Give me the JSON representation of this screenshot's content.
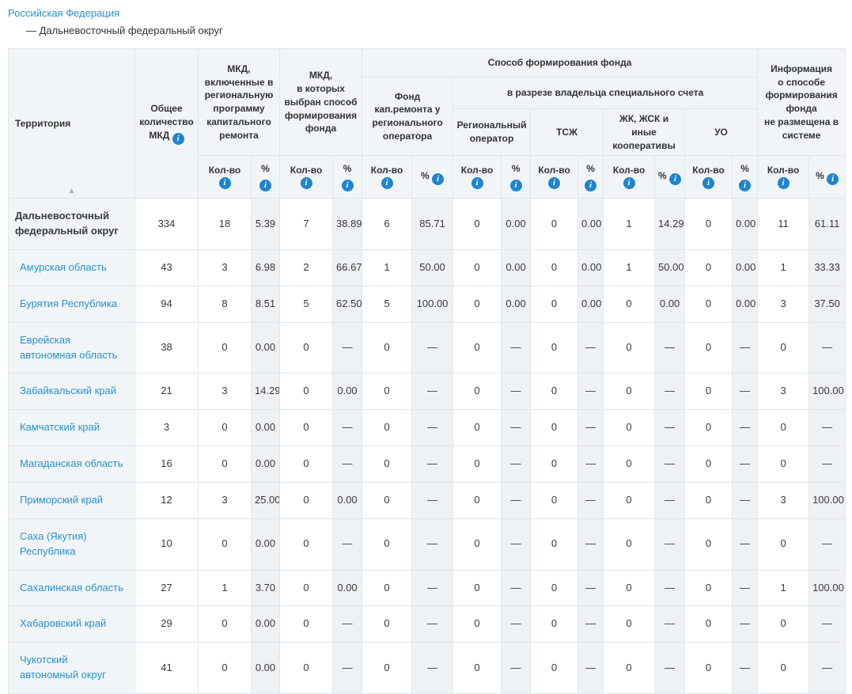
{
  "breadcrumb": {
    "root": "Российская Федерация",
    "current": "— Дальневосточный федеральный округ"
  },
  "colors": {
    "link": "#2692d0",
    "info_icon": "#1d85d0",
    "header_bg": "#f2f5f8",
    "pct_col_bg": "#eef2f5",
    "border": "#e2e7eb"
  },
  "icons": {
    "info": "i",
    "sort_asc": "▲"
  },
  "table": {
    "columns": {
      "territory": "Территория",
      "total": "Общее количество МКД",
      "included_program": "МКД,\nвключенные в региональную программу капитального ремонта",
      "method_chosen": "МКД,\nв которых выбран способ формирования фонда",
      "fund_method": "Способ формирования фонда",
      "fund_regional_operator": "Фонд\nкап.ремонта у регионального оператора",
      "special_account": "в разрезе владельца специального счета",
      "special_owners": [
        "Региональный оператор",
        "ТСЖ",
        "ЖК, ЖСК и иные кооперативы",
        "УО"
      ],
      "info_not_posted": "Информация\nо способе формирования фонда\nне размещена в системе",
      "qty": "Кол-во",
      "pct": "%"
    },
    "rows": [
      {
        "territory": "Дальневосточный федеральный округ",
        "is_link": false,
        "bold": true,
        "values": [
          "334",
          "18",
          "5.39",
          "7",
          "38.89",
          "6",
          "85.71",
          "0",
          "0.00",
          "0",
          "0.00",
          "1",
          "14.29",
          "0",
          "0.00",
          "11",
          "61.11"
        ]
      },
      {
        "territory": "Амурская область",
        "is_link": true,
        "bold": false,
        "values": [
          "43",
          "3",
          "6.98",
          "2",
          "66.67",
          "1",
          "50.00",
          "0",
          "0.00",
          "0",
          "0.00",
          "1",
          "50.00",
          "0",
          "0.00",
          "1",
          "33.33"
        ]
      },
      {
        "territory": "Бурятия Республика",
        "is_link": true,
        "bold": false,
        "values": [
          "94",
          "8",
          "8.51",
          "5",
          "62.50",
          "5",
          "100.00",
          "0",
          "0.00",
          "0",
          "0.00",
          "0",
          "0.00",
          "0",
          "0.00",
          "3",
          "37.50"
        ]
      },
      {
        "territory": "Еврейская автономная область",
        "is_link": true,
        "bold": false,
        "values": [
          "38",
          "0",
          "0.00",
          "0",
          "—",
          "0",
          "—",
          "0",
          "—",
          "0",
          "—",
          "0",
          "—",
          "0",
          "—",
          "0",
          "—"
        ]
      },
      {
        "territory": "Забайкальский край",
        "is_link": true,
        "bold": false,
        "values": [
          "21",
          "3",
          "14.29",
          "0",
          "0.00",
          "0",
          "—",
          "0",
          "—",
          "0",
          "—",
          "0",
          "—",
          "0",
          "—",
          "3",
          "100.00"
        ]
      },
      {
        "territory": "Камчатский край",
        "is_link": true,
        "bold": false,
        "values": [
          "3",
          "0",
          "0.00",
          "0",
          "—",
          "0",
          "—",
          "0",
          "—",
          "0",
          "—",
          "0",
          "—",
          "0",
          "—",
          "0",
          "—"
        ]
      },
      {
        "territory": "Магаданская область",
        "is_link": true,
        "bold": false,
        "values": [
          "16",
          "0",
          "0.00",
          "0",
          "—",
          "0",
          "—",
          "0",
          "—",
          "0",
          "—",
          "0",
          "—",
          "0",
          "—",
          "0",
          "—"
        ]
      },
      {
        "territory": "Приморский край",
        "is_link": true,
        "bold": false,
        "values": [
          "12",
          "3",
          "25.00",
          "0",
          "0.00",
          "0",
          "—",
          "0",
          "—",
          "0",
          "—",
          "0",
          "—",
          "0",
          "—",
          "3",
          "100.00"
        ]
      },
      {
        "territory": "Саха (Якутия) Республика",
        "is_link": true,
        "bold": false,
        "values": [
          "10",
          "0",
          "0.00",
          "0",
          "—",
          "0",
          "—",
          "0",
          "—",
          "0",
          "—",
          "0",
          "—",
          "0",
          "—",
          "0",
          "—"
        ]
      },
      {
        "territory": "Сахалинская область",
        "is_link": true,
        "bold": false,
        "values": [
          "27",
          "1",
          "3.70",
          "0",
          "0.00",
          "0",
          "—",
          "0",
          "—",
          "0",
          "—",
          "0",
          "—",
          "0",
          "—",
          "1",
          "100.00"
        ]
      },
      {
        "territory": "Хабаровский край",
        "is_link": true,
        "bold": false,
        "values": [
          "29",
          "0",
          "0.00",
          "0",
          "—",
          "0",
          "—",
          "0",
          "—",
          "0",
          "—",
          "0",
          "—",
          "0",
          "—",
          "0",
          "—"
        ]
      },
      {
        "territory": "Чукотский автономный округ",
        "is_link": true,
        "bold": false,
        "values": [
          "41",
          "0",
          "0.00",
          "0",
          "—",
          "0",
          "—",
          "0",
          "—",
          "0",
          "—",
          "0",
          "—",
          "0",
          "—",
          "0",
          "—"
        ]
      }
    ],
    "group_keys": [
      "included-program",
      "method-chosen",
      "fund-regional-operator",
      "owner-regional-operator",
      "owner-tsj",
      "owner-jk-jsk",
      "owner-uo",
      "info-not-posted"
    ]
  }
}
